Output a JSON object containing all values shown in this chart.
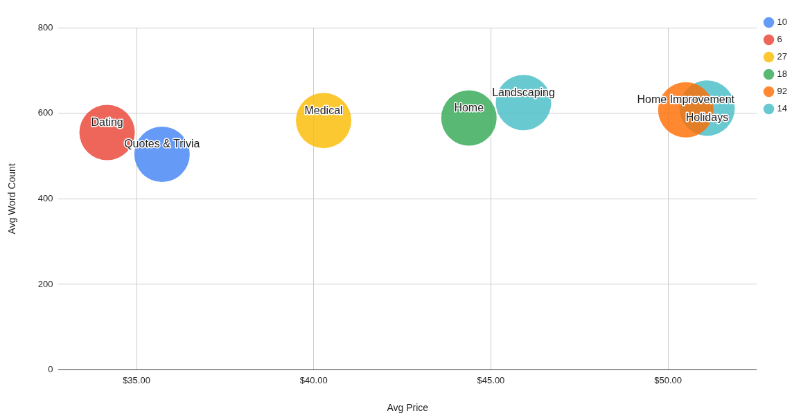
{
  "chart_data": {
    "type": "bubble",
    "xlabel": "Avg Price",
    "ylabel": "Avg Word Count",
    "xlim": [
      32.8,
      52.5
    ],
    "xticks": [
      {
        "value": 35,
        "label": "$35.00"
      },
      {
        "value": 40,
        "label": "$40.00"
      },
      {
        "value": 45,
        "label": "$45.00"
      },
      {
        "value": 50,
        "label": "$50.00"
      }
    ],
    "ylim": [
      0,
      800
    ],
    "yticks": [
      0,
      200,
      400,
      600,
      800
    ],
    "grid": true,
    "legend": "top right",
    "series": [
      {
        "name": "10",
        "color": "#4285f4",
        "x": [
          35.72
        ],
        "values": [
          504
        ],
        "sizes": [
          1
        ]
      },
      {
        "name": "6",
        "color": "#ea4335",
        "x": [
          34.17
        ],
        "values": [
          555
        ],
        "sizes": [
          1
        ]
      },
      {
        "name": "27",
        "color": "#fbbc04",
        "x": [
          40.28
        ],
        "values": [
          583
        ],
        "sizes": [
          1
        ]
      },
      {
        "name": "18",
        "color": "#34a853",
        "x": [
          44.38
        ],
        "values": [
          589
        ],
        "sizes": [
          1
        ]
      },
      {
        "name": "92",
        "color": "#ff6d01",
        "x": [
          50.5
        ],
        "values": [
          608
        ],
        "sizes": [
          1
        ]
      },
      {
        "name": "14",
        "color": "#46bdc6",
        "x": [
          45.92,
          51.1
        ],
        "values": [
          625,
          612
        ],
        "sizes": [
          1,
          1
        ]
      }
    ],
    "annotations": [
      {
        "text": "Quotes & Trivia",
        "x": 35.72,
        "y": 504
      },
      {
        "text": "Dating",
        "x": 34.17,
        "y": 555
      },
      {
        "text": "Medical",
        "x": 40.28,
        "y": 583
      },
      {
        "text": "Home",
        "x": 44.38,
        "y": 589
      },
      {
        "text": "Home Improvement",
        "x": 50.5,
        "y": 608
      },
      {
        "text": "Landscaping",
        "x": 45.92,
        "y": 625
      },
      {
        "text": "Holidays",
        "x": 51.1,
        "y": 612
      }
    ]
  }
}
